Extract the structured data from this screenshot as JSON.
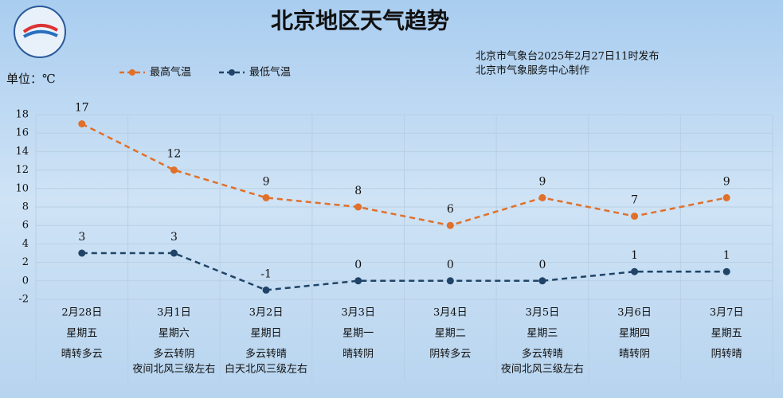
{
  "chart_data": {
    "type": "line",
    "title": "北京地区天气趋势",
    "unit": "单位：℃",
    "source": [
      "北京市气象台2025年2月27日11时发布",
      "北京市气象服务中心制作"
    ],
    "categories": [
      "2月28日",
      "3月1日",
      "3月2日",
      "3月3日",
      "3月4日",
      "3月5日",
      "3月6日",
      "3月7日"
    ],
    "weekdays": [
      "星期五",
      "星期六",
      "星期日",
      "星期一",
      "星期二",
      "星期三",
      "星期四",
      "星期五"
    ],
    "weather": [
      "晴转多云",
      "多云转阴",
      "多云转晴",
      "晴转阴",
      "阴转多云",
      "多云转晴",
      "晴转阴",
      "阴转晴"
    ],
    "wind": [
      null,
      "夜间北风三级左右",
      "白天北风三级左右",
      null,
      null,
      "夜间北风三级左右",
      null,
      null
    ],
    "series": [
      {
        "name": "最高气温",
        "color": "#e0702a",
        "values": [
          17,
          12,
          9,
          8,
          6,
          9,
          7,
          9
        ]
      },
      {
        "name": "最低气温",
        "color": "#1f4468",
        "values": [
          3,
          3,
          -1,
          0,
          0,
          0,
          1,
          1
        ]
      }
    ],
    "ylim": [
      -2,
      18
    ],
    "yticks": [
      -2,
      0,
      2,
      4,
      6,
      8,
      10,
      12,
      14,
      16,
      18
    ],
    "grid": true
  }
}
